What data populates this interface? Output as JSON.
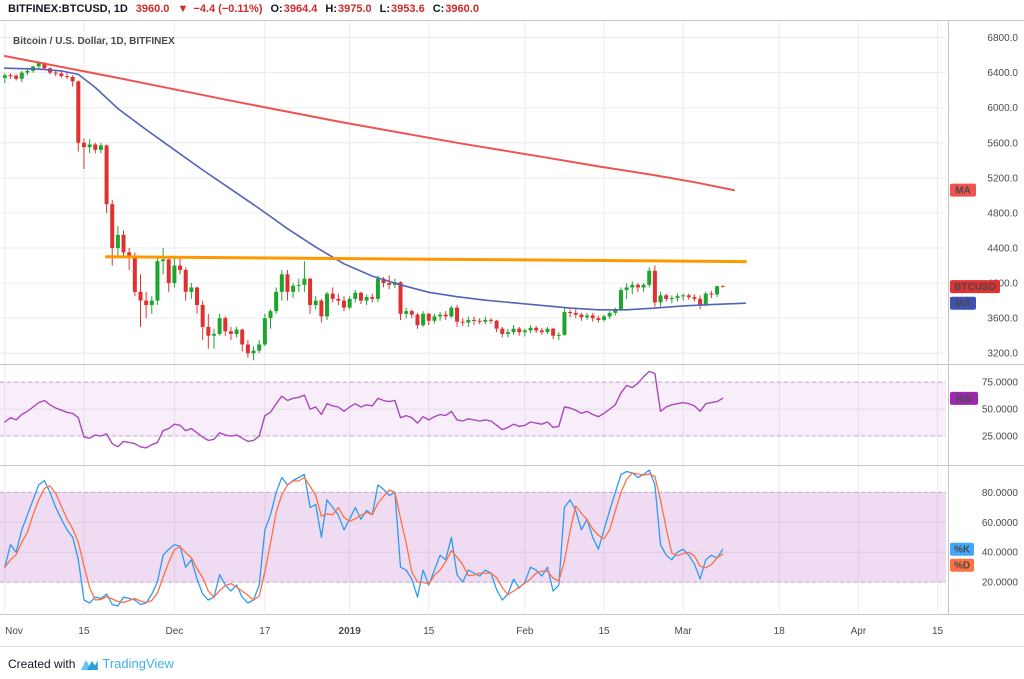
{
  "header": {
    "symbol_interval": "BITFINEX:BTCUSD, 1D",
    "last": "3960.0",
    "change_arrow": "▼",
    "change": "−4.4 (−0.11%)",
    "ohlc": [
      {
        "label": "O:",
        "value": "3964.4"
      },
      {
        "label": "H:",
        "value": "3975.0"
      },
      {
        "label": "L:",
        "value": "3953.6"
      },
      {
        "label": "C:",
        "value": "3960.0"
      }
    ]
  },
  "footer": {
    "created_with": "Created with",
    "brand": "TradingView"
  },
  "axis_badges": {
    "ma": "MA",
    "symbol": "BTCUSD",
    "rsi": "RSI",
    "k": "%K",
    "d": "%D"
  },
  "chart_data": {
    "type": "candlestick",
    "title": "Bitcoin / U.S. Dollar, 1D, BITFINEX",
    "days_total": 167,
    "price_range": [
      3100,
      7000
    ],
    "price_ticks": [
      {
        "v": 6800,
        "label": "6800.0"
      },
      {
        "v": 6400,
        "label": "6400.0"
      },
      {
        "v": 6000,
        "label": "6000.0"
      },
      {
        "v": 5600,
        "label": "5600.0"
      },
      {
        "v": 5200,
        "label": "5200.0"
      },
      {
        "v": 4800,
        "label": "4800.0"
      },
      {
        "v": 4400,
        "label": "4400.0"
      },
      {
        "v": 4000,
        "label": "4000.0"
      },
      {
        "v": 3600,
        "label": "3600.0"
      },
      {
        "v": 3200,
        "label": "3200.0"
      }
    ],
    "time_ticks": [
      {
        "day": 0,
        "label": "Nov"
      },
      {
        "day": 14,
        "label": "15"
      },
      {
        "day": 30,
        "label": "Dec"
      },
      {
        "day": 46,
        "label": "17"
      },
      {
        "day": 61,
        "label": "2019",
        "bold": true
      },
      {
        "day": 75,
        "label": "15"
      },
      {
        "day": 92,
        "label": "Feb"
      },
      {
        "day": 106,
        "label": "15"
      },
      {
        "day": 120,
        "label": "Mar"
      },
      {
        "day": 137,
        "label": "18"
      },
      {
        "day": 151,
        "label": "Apr"
      },
      {
        "day": 165,
        "label": "15"
      }
    ],
    "candles": [
      [
        6340,
        6390,
        6280,
        6370
      ],
      [
        6370,
        6390,
        6330,
        6365
      ],
      [
        6365,
        6380,
        6310,
        6330
      ],
      [
        6330,
        6420,
        6290,
        6400
      ],
      [
        6400,
        6440,
        6370,
        6420
      ],
      [
        6420,
        6480,
        6400,
        6470
      ],
      [
        6470,
        6530,
        6440,
        6510
      ],
      [
        6510,
        6520,
        6430,
        6450
      ],
      [
        6450,
        6460,
        6380,
        6400
      ],
      [
        6400,
        6430,
        6360,
        6390
      ],
      [
        6390,
        6420,
        6340,
        6360
      ],
      [
        6360,
        6400,
        6330,
        6350
      ],
      [
        6350,
        6370,
        6240,
        6300
      ],
      [
        6300,
        6310,
        5500,
        5600
      ],
      [
        5600,
        5650,
        5300,
        5550
      ],
      [
        5550,
        5640,
        5480,
        5580
      ],
      [
        5580,
        5600,
        5480,
        5520
      ],
      [
        5520,
        5600,
        5480,
        5570
      ],
      [
        5570,
        5580,
        4800,
        4900
      ],
      [
        4900,
        4950,
        4200,
        4400
      ],
      [
        4400,
        4650,
        4300,
        4550
      ],
      [
        4550,
        4600,
        4300,
        4350
      ],
      [
        4350,
        4400,
        4150,
        4300
      ],
      [
        4300,
        4350,
        3850,
        3900
      ],
      [
        3900,
        4100,
        3500,
        3800
      ],
      [
        3800,
        3900,
        3600,
        3750
      ],
      [
        3750,
        3850,
        3650,
        3800
      ],
      [
        3800,
        4300,
        3750,
        4250
      ],
      [
        4250,
        4400,
        4100,
        4270
      ],
      [
        4270,
        4300,
        3900,
        4000
      ],
      [
        4000,
        4300,
        3950,
        4200
      ],
      [
        4200,
        4280,
        4100,
        4150
      ],
      [
        4150,
        4180,
        3800,
        3900
      ],
      [
        3900,
        4000,
        3820,
        3950
      ],
      [
        3950,
        3960,
        3650,
        3750
      ],
      [
        3750,
        3800,
        3350,
        3500
      ],
      [
        3500,
        3650,
        3250,
        3400
      ],
      [
        3400,
        3480,
        3250,
        3420
      ],
      [
        3420,
        3650,
        3400,
        3600
      ],
      [
        3600,
        3620,
        3400,
        3450
      ],
      [
        3450,
        3500,
        3350,
        3420
      ],
      [
        3420,
        3500,
        3380,
        3470
      ],
      [
        3470,
        3480,
        3220,
        3300
      ],
      [
        3300,
        3350,
        3150,
        3200
      ],
      [
        3200,
        3280,
        3120,
        3230
      ],
      [
        3230,
        3350,
        3200,
        3300
      ],
      [
        3300,
        3650,
        3280,
        3600
      ],
      [
        3600,
        3700,
        3480,
        3680
      ],
      [
        3680,
        3950,
        3650,
        3900
      ],
      [
        3900,
        4150,
        3800,
        4100
      ],
      [
        4100,
        4150,
        3800,
        3900
      ],
      [
        3900,
        4000,
        3830,
        3970
      ],
      [
        3970,
        4050,
        3900,
        3980
      ],
      [
        3980,
        4250,
        3900,
        4050
      ],
      [
        4050,
        4060,
        3650,
        3750
      ],
      [
        3750,
        3850,
        3700,
        3800
      ],
      [
        3800,
        3820,
        3550,
        3620
      ],
      [
        3620,
        3900,
        3580,
        3880
      ],
      [
        3880,
        3950,
        3780,
        3820
      ],
      [
        3820,
        3880,
        3750,
        3800
      ],
      [
        3800,
        3850,
        3680,
        3720
      ],
      [
        3720,
        3850,
        3700,
        3820
      ],
      [
        3820,
        3920,
        3780,
        3890
      ],
      [
        3890,
        3900,
        3760,
        3800
      ],
      [
        3800,
        3870,
        3750,
        3840
      ],
      [
        3840,
        3880,
        3780,
        3820
      ],
      [
        3820,
        4080,
        3780,
        4050
      ],
      [
        4050,
        4070,
        3950,
        4000
      ],
      [
        4000,
        4090,
        3930,
        3980
      ],
      [
        3980,
        4050,
        3940,
        4010
      ],
      [
        4010,
        4020,
        3580,
        3650
      ],
      [
        3650,
        3720,
        3600,
        3680
      ],
      [
        3680,
        3700,
        3600,
        3640
      ],
      [
        3640,
        3660,
        3480,
        3520
      ],
      [
        3520,
        3680,
        3500,
        3650
      ],
      [
        3650,
        3660,
        3520,
        3570
      ],
      [
        3570,
        3650,
        3540,
        3620
      ],
      [
        3620,
        3670,
        3570,
        3640
      ],
      [
        3640,
        3680,
        3580,
        3620
      ],
      [
        3620,
        3740,
        3600,
        3720
      ],
      [
        3720,
        3750,
        3500,
        3560
      ],
      [
        3560,
        3600,
        3510,
        3550
      ],
      [
        3550,
        3620,
        3500,
        3580
      ],
      [
        3580,
        3620,
        3520,
        3570
      ],
      [
        3570,
        3600,
        3530,
        3560
      ],
      [
        3560,
        3620,
        3530,
        3580
      ],
      [
        3580,
        3600,
        3540,
        3570
      ],
      [
        3570,
        3580,
        3440,
        3480
      ],
      [
        3480,
        3500,
        3380,
        3420
      ],
      [
        3420,
        3480,
        3380,
        3440
      ],
      [
        3440,
        3520,
        3410,
        3480
      ],
      [
        3480,
        3500,
        3400,
        3440
      ],
      [
        3440,
        3480,
        3390,
        3460
      ],
      [
        3460,
        3520,
        3430,
        3490
      ],
      [
        3490,
        3510,
        3430,
        3460
      ],
      [
        3460,
        3490,
        3410,
        3440
      ],
      [
        3440,
        3500,
        3420,
        3480
      ],
      [
        3480,
        3490,
        3360,
        3400
      ],
      [
        3400,
        3440,
        3350,
        3410
      ],
      [
        3410,
        3710,
        3400,
        3670
      ],
      [
        3670,
        3700,
        3610,
        3660
      ],
      [
        3660,
        3700,
        3600,
        3640
      ],
      [
        3640,
        3660,
        3570,
        3610
      ],
      [
        3610,
        3660,
        3580,
        3630
      ],
      [
        3630,
        3660,
        3560,
        3600
      ],
      [
        3600,
        3630,
        3550,
        3580
      ],
      [
        3580,
        3640,
        3560,
        3620
      ],
      [
        3620,
        3680,
        3590,
        3660
      ],
      [
        3660,
        3720,
        3630,
        3700
      ],
      [
        3700,
        3950,
        3680,
        3920
      ],
      [
        3920,
        4000,
        3820,
        3950
      ],
      [
        3950,
        4020,
        3870,
        3980
      ],
      [
        3980,
        4000,
        3900,
        3950
      ],
      [
        3950,
        4000,
        3900,
        3980
      ],
      [
        3980,
        4180,
        3950,
        4140
      ],
      [
        4140,
        4200,
        3730,
        3780
      ],
      [
        3780,
        3900,
        3730,
        3860
      ],
      [
        3860,
        3880,
        3790,
        3820
      ],
      [
        3820,
        3860,
        3770,
        3830
      ],
      [
        3830,
        3880,
        3790,
        3850
      ],
      [
        3850,
        3880,
        3800,
        3860
      ],
      [
        3860,
        3880,
        3810,
        3840
      ],
      [
        3840,
        3870,
        3790,
        3820
      ],
      [
        3820,
        3860,
        3700,
        3750
      ],
      [
        3750,
        3900,
        3740,
        3880
      ],
      [
        3880,
        3910,
        3830,
        3870
      ],
      [
        3870,
        3970,
        3840,
        3964.4
      ],
      [
        3964.4,
        3975,
        3953.6,
        3960
      ]
    ],
    "overlays": {
      "ma_red": {
        "name": "MA",
        "points": [
          [
            0,
            6590
          ],
          [
            20,
            6340
          ],
          [
            40,
            6080
          ],
          [
            60,
            5830
          ],
          [
            80,
            5600
          ],
          [
            95,
            5440
          ],
          [
            105,
            5330
          ],
          [
            115,
            5230
          ],
          [
            122,
            5150
          ],
          [
            129,
            5060
          ]
        ]
      },
      "ma_blue": {
        "name": "MA",
        "points": [
          [
            0,
            6450
          ],
          [
            6,
            6440
          ],
          [
            10,
            6420
          ],
          [
            13,
            6380
          ],
          [
            16,
            6230
          ],
          [
            20,
            5990
          ],
          [
            25,
            5750
          ],
          [
            30,
            5520
          ],
          [
            35,
            5290
          ],
          [
            40,
            5070
          ],
          [
            45,
            4850
          ],
          [
            50,
            4620
          ],
          [
            55,
            4410
          ],
          [
            60,
            4220
          ],
          [
            65,
            4080
          ],
          [
            70,
            3980
          ],
          [
            75,
            3895
          ],
          [
            80,
            3845
          ],
          [
            85,
            3805
          ],
          [
            90,
            3775
          ],
          [
            95,
            3745
          ],
          [
            100,
            3715
          ],
          [
            105,
            3695
          ],
          [
            110,
            3695
          ],
          [
            115,
            3715
          ],
          [
            120,
            3740
          ],
          [
            125,
            3755
          ],
          [
            131,
            3770
          ]
        ]
      },
      "trendline": {
        "from": [
          18,
          4300
        ],
        "to": [
          131,
          4245
        ]
      }
    },
    "rsi": {
      "name": "RSI",
      "range": [
        0,
        90
      ],
      "band": [
        25,
        75
      ],
      "ticks": [
        {
          "v": 75,
          "label": "75.0000"
        },
        {
          "v": 50,
          "label": "50.0000"
        },
        {
          "v": 25,
          "label": "25.0000"
        }
      ],
      "values": [
        38,
        42,
        40,
        45,
        48,
        52,
        56,
        58,
        54,
        51,
        49,
        47,
        46,
        42,
        24,
        23,
        26,
        25,
        27,
        18,
        15,
        20,
        19,
        18,
        15,
        14,
        17,
        19,
        30,
        32,
        36,
        35,
        30,
        32,
        28,
        24,
        21,
        22,
        28,
        26,
        25,
        26,
        23,
        20,
        21,
        25,
        44,
        47,
        55,
        62,
        58,
        60,
        61,
        63,
        50,
        52,
        45,
        55,
        53,
        52,
        48,
        52,
        55,
        52,
        54,
        53,
        60,
        58,
        57,
        58,
        42,
        44,
        42,
        37,
        43,
        40,
        43,
        45,
        44,
        48,
        40,
        39,
        41,
        40,
        39,
        40,
        39,
        35,
        31,
        33,
        36,
        34,
        35,
        38,
        37,
        36,
        38,
        33,
        34,
        52,
        51,
        49,
        46,
        48,
        45,
        43,
        46,
        50,
        54,
        65,
        72,
        70,
        74,
        80,
        85,
        83,
        48,
        52,
        54,
        55,
        56,
        55,
        53,
        48,
        55,
        56,
        57,
        60
      ]
    },
    "stoch": {
      "k_name": "%K",
      "d_name": "%D",
      "range": [
        0,
        97
      ],
      "band": [
        20,
        80
      ],
      "ticks": [
        {
          "v": 80,
          "label": "80.0000"
        },
        {
          "v": 60,
          "label": "60.0000"
        },
        {
          "v": 40,
          "label": "40.0000"
        },
        {
          "v": 20,
          "label": "20.0000"
        }
      ],
      "k_values": [
        30,
        45,
        40,
        55,
        65,
        75,
        85,
        88,
        80,
        70,
        62,
        55,
        50,
        35,
        8,
        6,
        10,
        9,
        12,
        5,
        4,
        10,
        9,
        8,
        5,
        6,
        12,
        20,
        38,
        42,
        45,
        44,
        30,
        35,
        22,
        12,
        8,
        10,
        25,
        18,
        14,
        18,
        10,
        6,
        8,
        18,
        55,
        65,
        80,
        90,
        85,
        88,
        90,
        92,
        70,
        72,
        50,
        75,
        70,
        65,
        55,
        62,
        70,
        62,
        68,
        65,
        85,
        82,
        78,
        80,
        30,
        28,
        22,
        10,
        28,
        18,
        28,
        38,
        35,
        50,
        25,
        20,
        28,
        26,
        24,
        28,
        26,
        15,
        8,
        12,
        22,
        16,
        20,
        30,
        28,
        24,
        30,
        14,
        18,
        70,
        75,
        68,
        55,
        62,
        50,
        42,
        55,
        68,
        80,
        92,
        94,
        93,
        90,
        92,
        95,
        85,
        45,
        38,
        35,
        40,
        42,
        38,
        32,
        22,
        35,
        38,
        36,
        42
      ]
    },
    "colors": {
      "negative": "#d02a2a",
      "up": "#1fa52e",
      "down": "#e03131",
      "ma_red": "#ef5350",
      "ma_blue": "#5363b8",
      "trend": "#ff9800",
      "rsi": "#ab47bc",
      "band_fill": "#9c27b0",
      "band_edge": "#bfa8d8",
      "k": "#2f9bf0",
      "dline": "#ff7043",
      "badge_ma_red": "#ef5350",
      "badge_symbol": "#e03131",
      "badge_ma_blue": "#3f51b5",
      "badge_rsi": "#9c27b0",
      "badge_k": "#42a5f5",
      "badge_d": "#ff7043",
      "grid": "#ececec",
      "divider": "#c6c6c6",
      "brand": "#3bb2e8"
    }
  }
}
